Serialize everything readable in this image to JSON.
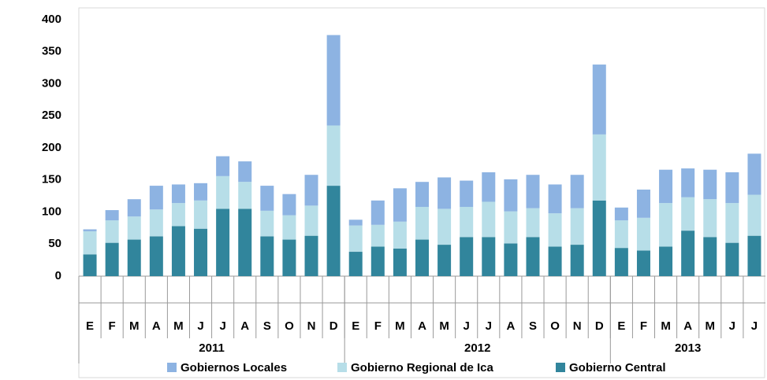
{
  "chart_data": {
    "type": "stacked_bar",
    "categories": [
      "E",
      "F",
      "M",
      "A",
      "M",
      "J",
      "J",
      "A",
      "S",
      "O",
      "N",
      "D",
      "E",
      "F",
      "M",
      "A",
      "M",
      "J",
      "J",
      "A",
      "S",
      "O",
      "N",
      "D",
      "E",
      "F",
      "M",
      "A",
      "M",
      "J",
      "J"
    ],
    "groups": [
      {
        "label": "2011",
        "span": 12
      },
      {
        "label": "2012",
        "span": 12
      },
      {
        "label": "2013",
        "span": 7
      }
    ],
    "series": [
      {
        "name": "Gobiernos Locales",
        "color": "#8db3e2",
        "values": [
          3,
          16,
          27,
          37,
          29,
          27,
          31,
          32,
          39,
          33,
          48,
          141,
          9,
          38,
          52,
          39,
          49,
          41,
          46,
          50,
          52,
          45,
          52,
          109,
          20,
          44,
          52,
          45,
          46,
          48,
          64
        ]
      },
      {
        "name": "Gobierno Regional de Ica",
        "color": "#b7dee8",
        "values": [
          36,
          35,
          36,
          42,
          36,
          44,
          51,
          42,
          40,
          38,
          47,
          94,
          41,
          34,
          42,
          51,
          56,
          47,
          55,
          50,
          45,
          52,
          57,
          103,
          43,
          51,
          68,
          52,
          59,
          62,
          64
        ]
      },
      {
        "name": "Gobierno Central",
        "color": "#31859c",
        "values": [
          34,
          52,
          57,
          62,
          78,
          74,
          105,
          105,
          62,
          57,
          63,
          141,
          38,
          46,
          43,
          57,
          49,
          61,
          61,
          51,
          61,
          46,
          49,
          118,
          44,
          40,
          46,
          71,
          61,
          52,
          63
        ]
      }
    ],
    "ylim": [
      0,
      400
    ],
    "yticks": [
      0,
      50,
      100,
      150,
      200,
      250,
      300,
      350,
      400
    ]
  }
}
